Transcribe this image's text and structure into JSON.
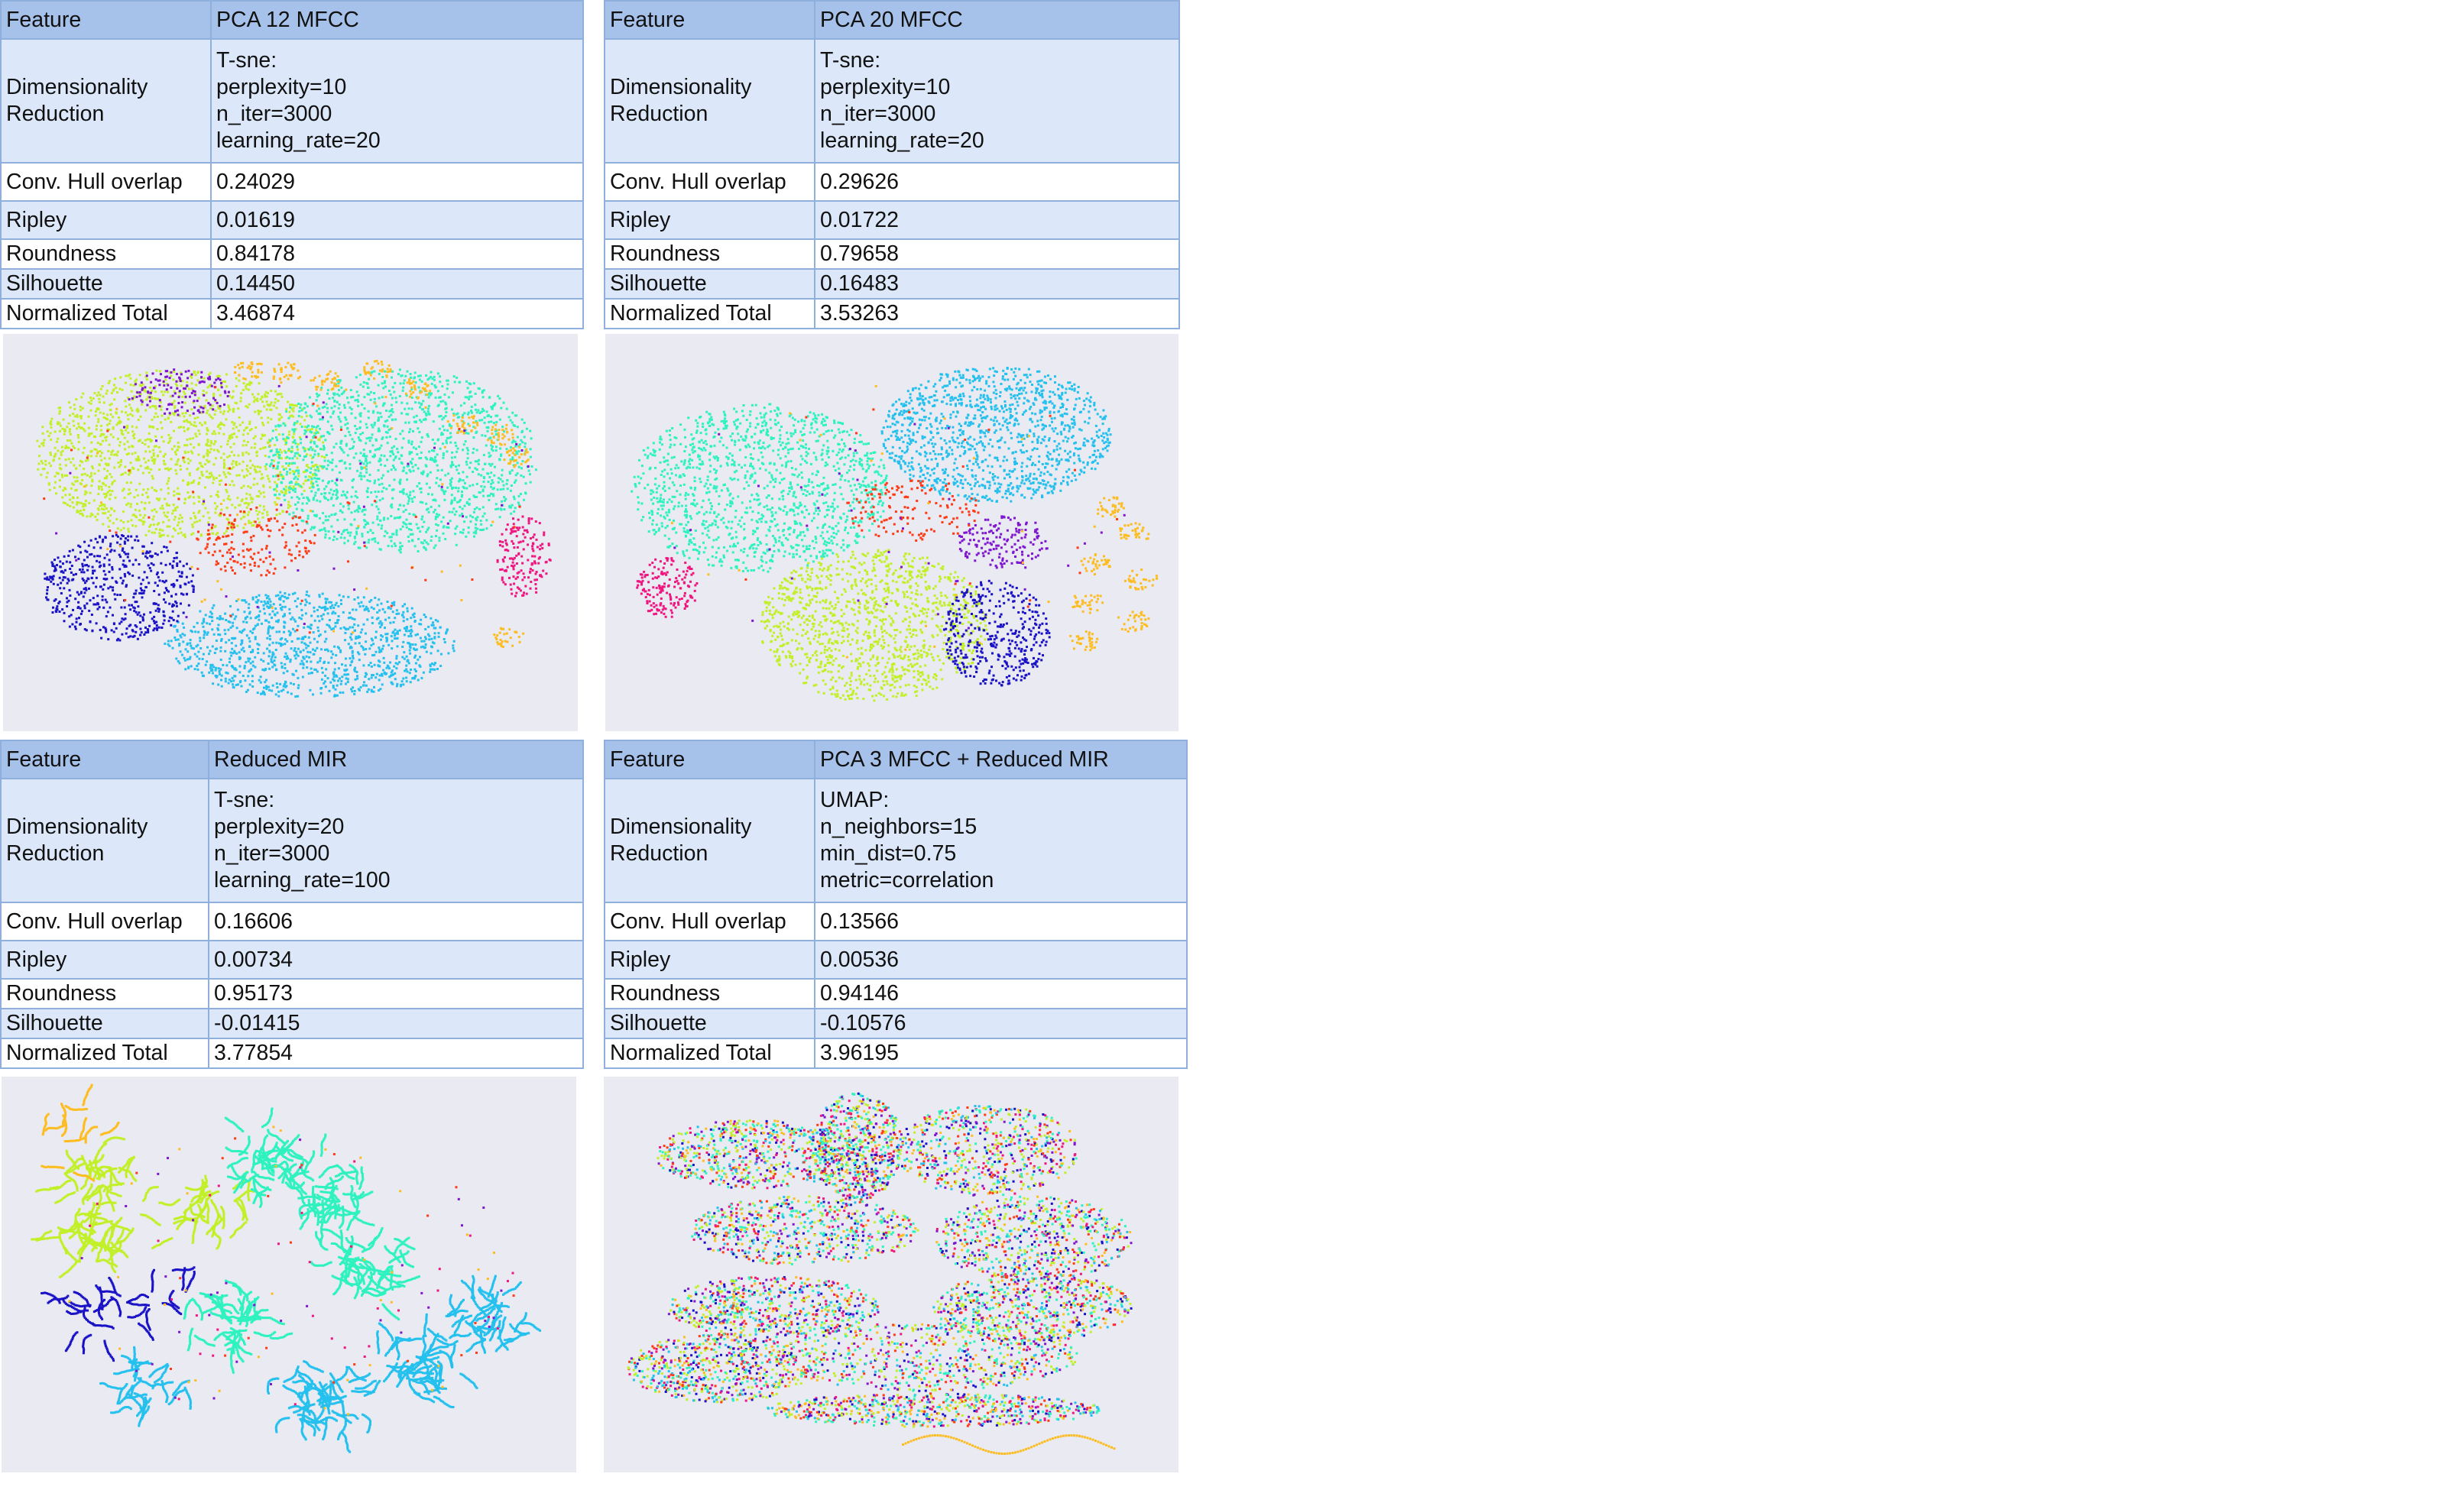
{
  "panels": [
    {
      "feature_label": "Feature",
      "feature": "PCA 12 MFCC",
      "dimred_label": "Dimensionality\nReduction",
      "dimred": "T-sne:\nperplexity=10\nn_iter=3000\nlearning_rate=20",
      "metrics": [
        {
          "label": "Conv. Hull overlap",
          "value": "0.24029"
        },
        {
          "label": "Ripley",
          "value": "0.01619"
        },
        {
          "label": "Roundness",
          "value": "0.84178"
        },
        {
          "label": "Silhouette",
          "value": "0.14450"
        },
        {
          "label": "Normalized Total",
          "value": "3.46874"
        }
      ]
    },
    {
      "feature_label": "Feature",
      "feature": "PCA 20 MFCC",
      "dimred_label": "Dimensionality\nReduction",
      "dimred": "T-sne:\nperplexity=10\nn_iter=3000\nlearning_rate=20",
      "metrics": [
        {
          "label": "Conv. Hull overlap",
          "value": "0.29626"
        },
        {
          "label": "Ripley",
          "value": "0.01722"
        },
        {
          "label": "Roundness",
          "value": "0.79658"
        },
        {
          "label": "Silhouette",
          "value": "0.16483"
        },
        {
          "label": "Normalized Total",
          "value": "3.53263"
        }
      ]
    },
    {
      "feature_label": "Feature",
      "feature": "Reduced MIR",
      "dimred_label": "Dimensionality\nReduction",
      "dimred": "T-sne:\nperplexity=20\nn_iter=3000\nlearning_rate=100",
      "metrics": [
        {
          "label": "Conv. Hull overlap",
          "value": "0.16606"
        },
        {
          "label": "Ripley",
          "value": "0.00734"
        },
        {
          "label": "Roundness",
          "value": "0.95173"
        },
        {
          "label": "Silhouette",
          "value": "-0.01415"
        },
        {
          "label": "Normalized Total",
          "value": "3.77854"
        }
      ]
    },
    {
      "feature_label": "Feature",
      "feature": "PCA 3 MFCC + Reduced MIR",
      "dimred_label": "Dimensionality\nReduction",
      "dimred": "UMAP:\nn_neighbors=15\nmin_dist=0.75\nmetric=correlation",
      "metrics": [
        {
          "label": "Conv. Hull overlap",
          "value": "0.13566"
        },
        {
          "label": "Ripley",
          "value": "0.00536"
        },
        {
          "label": "Roundness",
          "value": "0.94146"
        },
        {
          "label": "Silhouette",
          "value": "-0.10576"
        },
        {
          "label": "Normalized Total",
          "value": "3.96195"
        }
      ]
    }
  ],
  "palette": {
    "lime": "#c2f028",
    "aqua": "#2ef2bf",
    "sky": "#24c0ee",
    "navy": "#1a12c6",
    "violet": "#7f16d0",
    "red": "#ff3a14",
    "amber": "#fdbd21",
    "magenta": "#f0167f",
    "plot_background": "#eaeaf2"
  }
}
